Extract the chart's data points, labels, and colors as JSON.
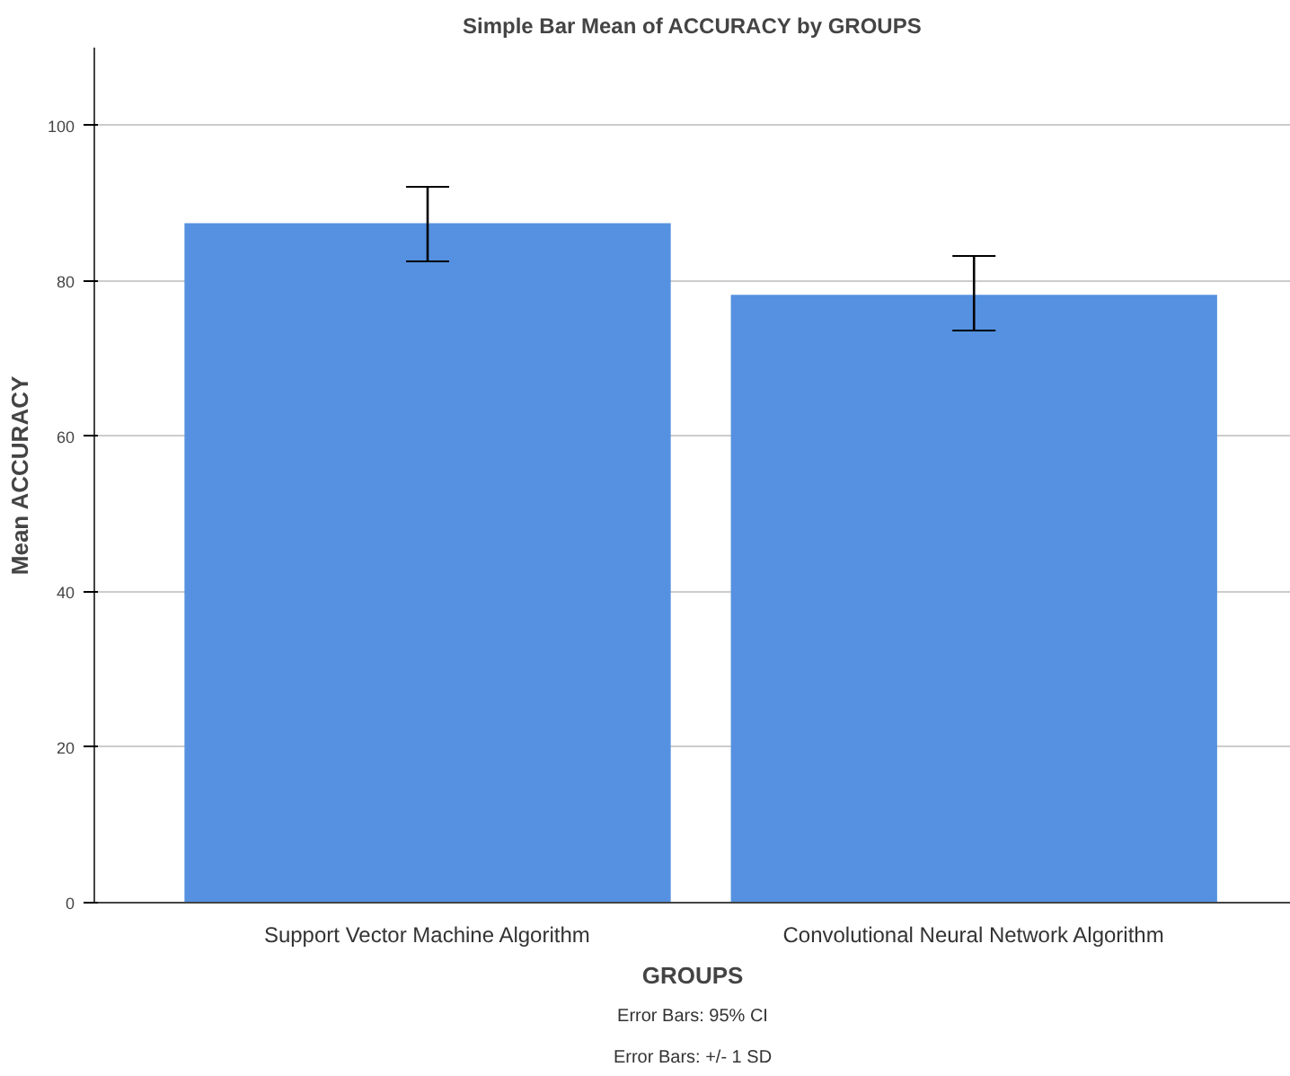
{
  "chart_data": {
    "type": "bar",
    "title": "Simple Bar Mean of ACCURACY by GROUPS",
    "xlabel": "GROUPS",
    "ylabel": "Mean ACCURACY",
    "categories": [
      "Support Vector Machine Algorithm",
      "Convolutional Neural Network Algorithm"
    ],
    "values": [
      87.4,
      78.2
    ],
    "errors": [
      [
        82.5,
        92.1
      ],
      [
        73.6,
        83.2
      ]
    ],
    "color": "#5591e0",
    "ylim": [
      0,
      110
    ],
    "yticks": [
      0,
      20,
      40,
      60,
      80,
      100
    ],
    "grid": "y",
    "annotations": [
      "Error Bars: 95% CI",
      "Error Bars: +/- 1 SD"
    ]
  }
}
